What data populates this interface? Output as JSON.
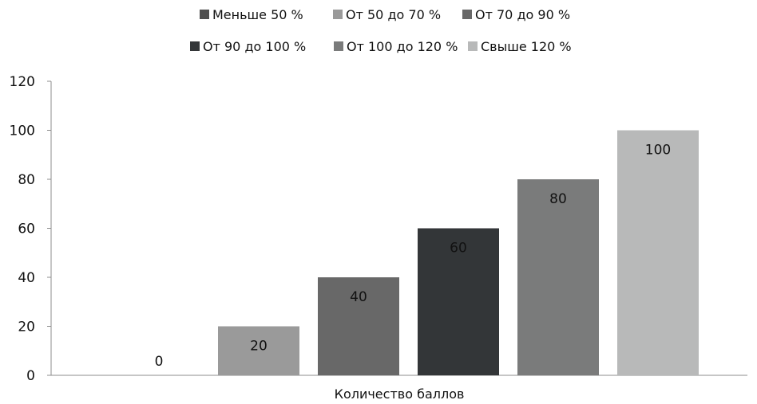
{
  "chart_data": {
    "type": "bar",
    "title": "",
    "xlabel": "Количество баллов",
    "ylabel": "",
    "ylim": [
      0,
      120
    ],
    "yticks": [
      0,
      20,
      40,
      60,
      80,
      100,
      120
    ],
    "grid": false,
    "legend_position": "top",
    "categories": [
      "Количество баллов"
    ],
    "series": [
      {
        "name": "Меньше 50 %",
        "values": [
          0
        ],
        "color": "#4d4d4d"
      },
      {
        "name": "От 50 до 70 %",
        "values": [
          20
        ],
        "color": "#9a9a9a"
      },
      {
        "name": "От 70 до 90 %",
        "values": [
          40
        ],
        "color": "#686868"
      },
      {
        "name": "От 90 до 100 %",
        "values": [
          60
        ],
        "color": "#333638"
      },
      {
        "name": "От 100 до 120 %",
        "values": [
          80
        ],
        "color": "#7a7b7b"
      },
      {
        "name": "Свыше 120 %",
        "values": [
          100
        ],
        "color": "#b8b9b9"
      }
    ]
  }
}
